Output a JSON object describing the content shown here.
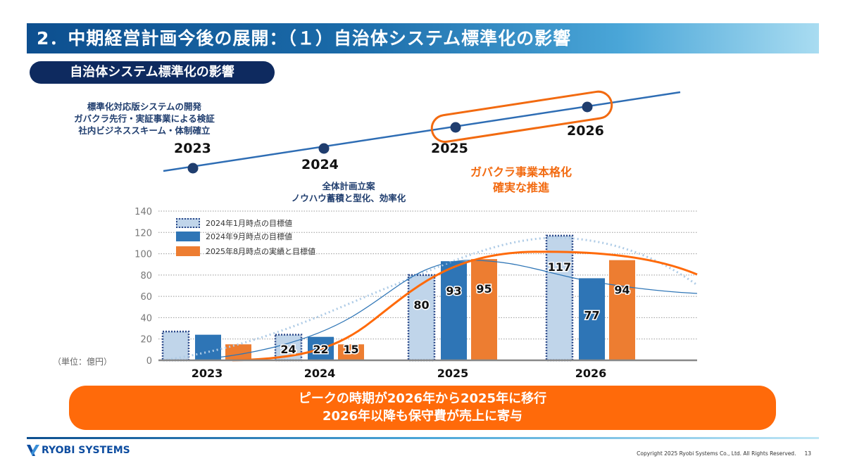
{
  "header": {
    "title": "2．中期経営計画今後の展開：（１）自治体システム標準化の影響",
    "subtitle": "自治体システム標準化の影響"
  },
  "timeline": {
    "items": [
      {
        "year": "2023",
        "lines": [
          "標準化対応版システムの開発",
          "ガバクラ先行・実証事業による検証",
          "社内ビジネススキーム・体制確立"
        ]
      },
      {
        "year": "2024",
        "lines": [
          "全体計画立案",
          "ノウハウ蓄積と型化、効率化"
        ]
      },
      {
        "year": "2025",
        "lines": []
      },
      {
        "year": "2026",
        "lines": []
      }
    ],
    "highlight": [
      "ガバクラ事業本格化",
      "確実な推進"
    ],
    "line_color": "#2e6db4",
    "highlight_color": "#f26a10"
  },
  "chart_data": {
    "type": "bar",
    "categories": [
      "2023",
      "2024",
      "2025",
      "2026"
    ],
    "ylim": [
      0,
      140
    ],
    "yticks": [
      0,
      20,
      40,
      60,
      80,
      100,
      120,
      140
    ],
    "ylabel": "（単位：億円）",
    "grid": true,
    "legend_position": "top-left",
    "series": [
      {
        "name": "2024年1月時点の目標値",
        "values": [
          27,
          24,
          80,
          117
        ],
        "labels": [
          null,
          "24",
          "80",
          "117"
        ],
        "color": "#c0d5ea",
        "style": "dotted-border"
      },
      {
        "name": "2024年9月時点の目標値",
        "values": [
          24,
          22,
          93,
          77
        ],
        "labels": [
          null,
          "22",
          "93",
          "77"
        ],
        "color": "#2e75b6"
      },
      {
        "name": "2025年8月時点の実績と目標値",
        "values": [
          15,
          15,
          95,
          94
        ],
        "labels": [
          null,
          "15",
          "95",
          "94"
        ],
        "color": "#ed7d31"
      }
    ]
  },
  "banner": {
    "line1": "ピークの時期が2026年から2025年に移行",
    "line2": "2026年以降も保守費が売上に寄与"
  },
  "footer": {
    "logo": "RYOBI SYSTEMS",
    "copyright": "Copyright 2025 Ryobi Systems Co., Ltd. All Rights Reserved.",
    "page": "13"
  }
}
